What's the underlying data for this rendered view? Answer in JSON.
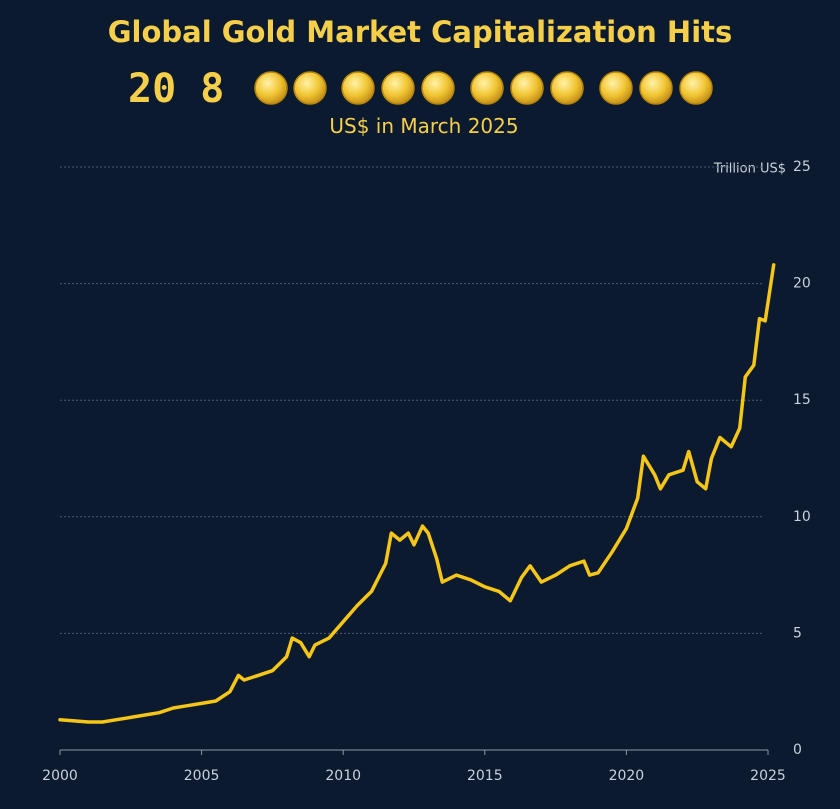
{
  "chart_data": {
    "type": "line",
    "title": "Global Gold Market Capitalization Hits",
    "headline_number": "20 8",
    "subtitle": "US$ in March 2025",
    "y_axis_label": "Trillion US$",
    "series": [
      {
        "name": "Gold market capitalization",
        "color": "#f5c518",
        "x": [
          2000.0,
          2000.5,
          2001.0,
          2001.5,
          2002.0,
          2002.5,
          2003.0,
          2003.5,
          2004.0,
          2004.5,
          2005.0,
          2005.5,
          2006.0,
          2006.3,
          2006.5,
          2007.0,
          2007.5,
          2008.0,
          2008.2,
          2008.5,
          2008.8,
          2009.0,
          2009.5,
          2010.0,
          2010.5,
          2011.0,
          2011.5,
          2011.7,
          2012.0,
          2012.3,
          2012.5,
          2012.8,
          2013.0,
          2013.3,
          2013.5,
          2014.0,
          2014.5,
          2015.0,
          2015.5,
          2015.9,
          2016.3,
          2016.6,
          2017.0,
          2017.5,
          2018.0,
          2018.5,
          2018.7,
          2019.0,
          2019.5,
          2020.0,
          2020.4,
          2020.6,
          2021.0,
          2021.2,
          2021.5,
          2022.0,
          2022.2,
          2022.5,
          2022.8,
          2023.0,
          2023.3,
          2023.7,
          2024.0,
          2024.2,
          2024.5,
          2024.7,
          2024.9,
          2025.2
        ],
        "values": [
          1.3,
          1.25,
          1.2,
          1.2,
          1.3,
          1.4,
          1.5,
          1.6,
          1.8,
          1.9,
          2.0,
          2.1,
          2.5,
          3.2,
          3.0,
          3.2,
          3.4,
          4.0,
          4.8,
          4.6,
          4.0,
          4.5,
          4.8,
          5.5,
          6.2,
          6.8,
          8.0,
          9.3,
          9.0,
          9.3,
          8.8,
          9.6,
          9.3,
          8.2,
          7.2,
          7.5,
          7.3,
          7.0,
          6.8,
          6.4,
          7.4,
          7.9,
          7.2,
          7.5,
          7.9,
          8.1,
          7.5,
          7.6,
          8.5,
          9.5,
          10.8,
          12.6,
          11.8,
          11.2,
          11.8,
          12.0,
          12.8,
          11.5,
          11.2,
          12.5,
          13.4,
          13.0,
          13.8,
          16.0,
          16.5,
          18.5,
          18.4,
          20.8
        ]
      }
    ],
    "xlim": [
      2000,
      2025
    ],
    "xticks": [
      2000,
      2005,
      2010,
      2015,
      2020,
      2025
    ],
    "ylim": [
      0,
      25
    ],
    "yticks": [
      0,
      5,
      10,
      15,
      20,
      25
    ],
    "grid": true
  }
}
